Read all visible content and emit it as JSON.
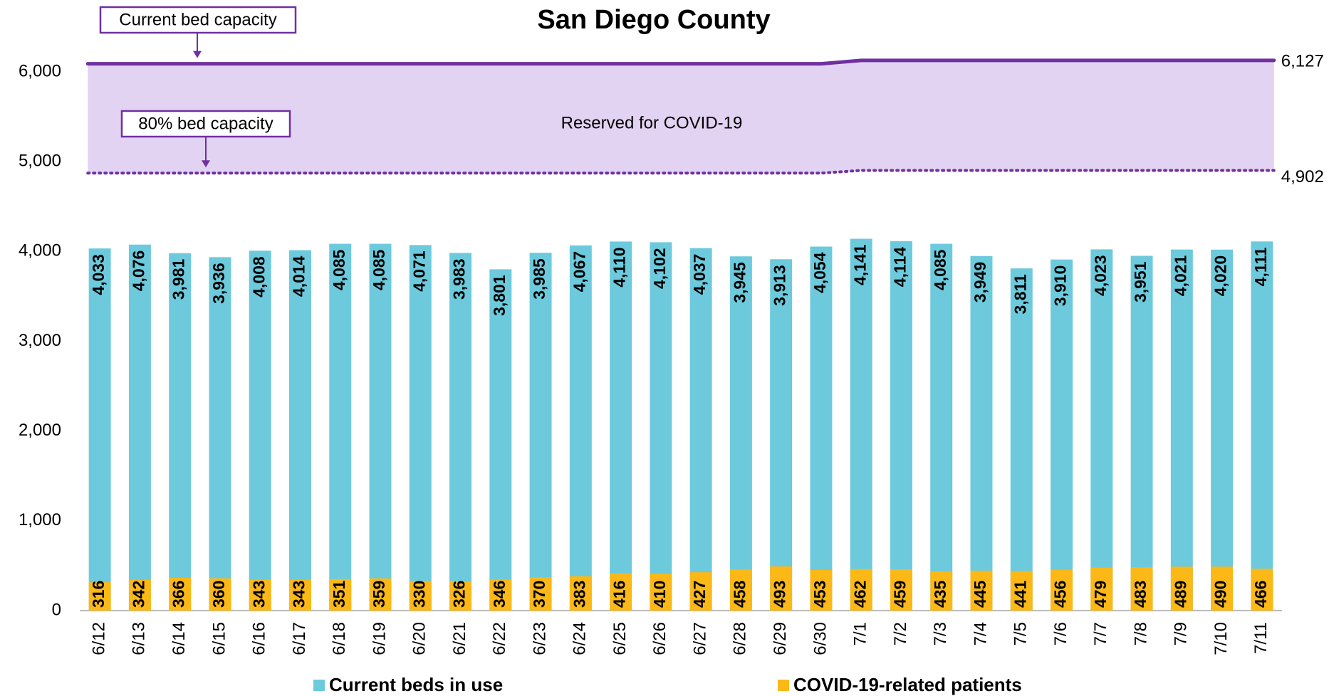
{
  "chart_data": {
    "type": "bar",
    "title": "San Diego County",
    "categories": [
      "6/12",
      "6/13",
      "6/14",
      "6/15",
      "6/16",
      "6/17",
      "6/18",
      "6/19",
      "6/20",
      "6/21",
      "6/22",
      "6/23",
      "6/24",
      "6/25",
      "6/26",
      "6/27",
      "6/28",
      "6/29",
      "6/30",
      "7/1",
      "7/2",
      "7/3",
      "7/4",
      "7/5",
      "7/6",
      "7/7",
      "7/8",
      "7/9",
      "7/10",
      "7/11"
    ],
    "series": [
      {
        "name": "Current beds in use",
        "color": "#6ccadc",
        "values": [
          4033,
          4076,
          3981,
          3936,
          4008,
          4014,
          4085,
          4085,
          4071,
          3983,
          3801,
          3985,
          4067,
          4110,
          4102,
          4037,
          3945,
          3913,
          4054,
          4141,
          4114,
          4085,
          3949,
          3811,
          3910,
          4023,
          3951,
          4021,
          4020,
          4111
        ],
        "value_labels": [
          "4,033",
          "4,076",
          "3,981",
          "3,936",
          "4,008",
          "4,014",
          "4,085",
          "4,085",
          "4,071",
          "3,983",
          "3,801",
          "3,985",
          "4,067",
          "4,110",
          "4,102",
          "4,037",
          "3,945",
          "3,913",
          "4,054",
          "4,141",
          "4,114",
          "4,085",
          "3,949",
          "3,811",
          "3,910",
          "4,023",
          "3,951",
          "4,021",
          "4,020",
          "4,111"
        ]
      },
      {
        "name": "COVID-19-related patients",
        "color": "#fbb817",
        "values": [
          316,
          342,
          366,
          360,
          343,
          343,
          351,
          359,
          330,
          326,
          346,
          370,
          383,
          416,
          410,
          427,
          458,
          493,
          453,
          462,
          459,
          435,
          445,
          441,
          456,
          479,
          483,
          489,
          490,
          466
        ]
      }
    ],
    "lines": [
      {
        "annotation": "Current bed capacity",
        "color": "#7030a0",
        "style": "solid",
        "end_label": "6,127",
        "values": [
          6090,
          6090,
          6090,
          6090,
          6090,
          6090,
          6090,
          6090,
          6090,
          6090,
          6090,
          6090,
          6090,
          6090,
          6090,
          6090,
          6090,
          6090,
          6090,
          6127,
          6127,
          6127,
          6127,
          6127,
          6127,
          6127,
          6127,
          6127,
          6127,
          6127
        ]
      },
      {
        "annotation": "80% bed capacity",
        "color": "#7030a0",
        "style": "dotted",
        "end_label": "4,902",
        "values": [
          4872,
          4872,
          4872,
          4872,
          4872,
          4872,
          4872,
          4872,
          4872,
          4872,
          4872,
          4872,
          4872,
          4872,
          4872,
          4872,
          4872,
          4872,
          4872,
          4902,
          4902,
          4902,
          4902,
          4902,
          4902,
          4902,
          4902,
          4902,
          4902,
          4902
        ]
      }
    ],
    "area_label": "Reserved for COVID-19",
    "area_color": "#e2d3f2",
    "ylim": [
      0,
      6800
    ],
    "yticks": [
      0,
      {
        "value": 1000,
        "label": "1,000"
      },
      {
        "value": 2000,
        "label": "2,000"
      },
      {
        "value": 3000,
        "label": "3,000"
      },
      {
        "value": 4000,
        "label": "4,000"
      },
      {
        "value": 5000,
        "label": "5,000"
      },
      {
        "value": 6000,
        "label": "6,000"
      }
    ]
  }
}
